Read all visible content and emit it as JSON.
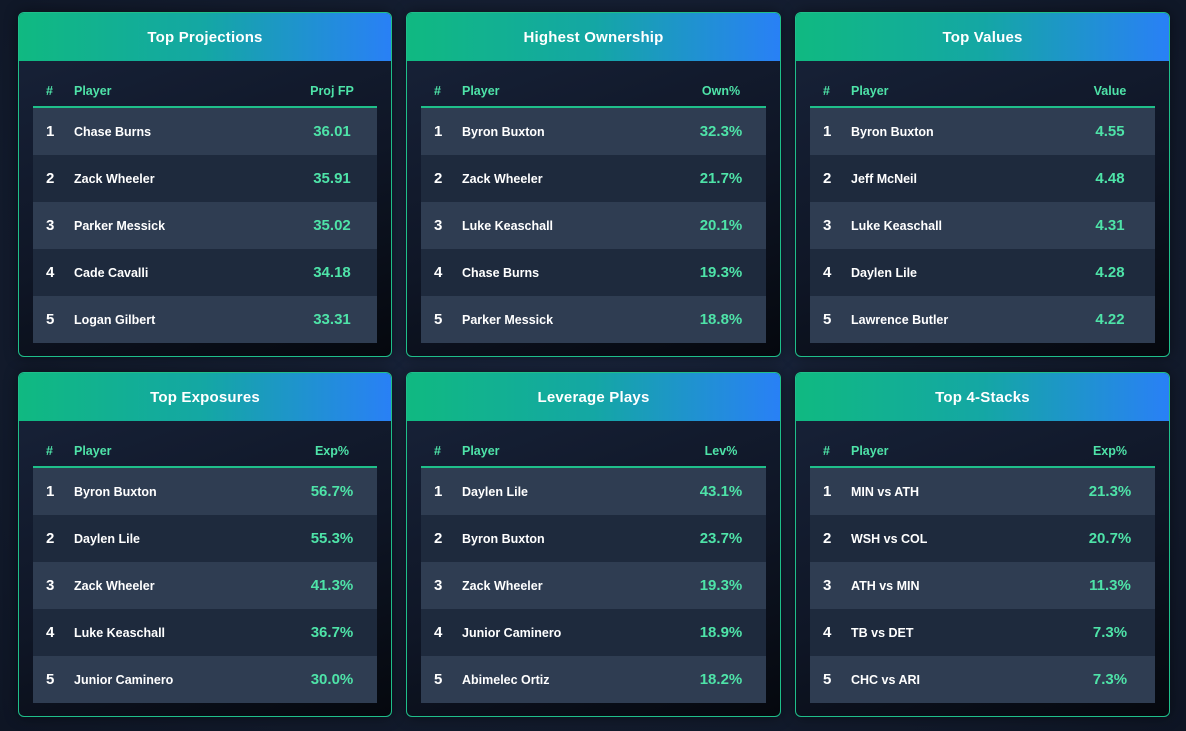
{
  "panels": [
    {
      "title": "Top Projections",
      "headers": {
        "rank": "#",
        "player": "Player",
        "value": "Proj FP"
      },
      "rows": [
        {
          "rank": "1",
          "player": "Chase Burns",
          "value": "36.01"
        },
        {
          "rank": "2",
          "player": "Zack Wheeler",
          "value": "35.91"
        },
        {
          "rank": "3",
          "player": "Parker Messick",
          "value": "35.02"
        },
        {
          "rank": "4",
          "player": "Cade Cavalli",
          "value": "34.18"
        },
        {
          "rank": "5",
          "player": "Logan Gilbert",
          "value": "33.31"
        }
      ]
    },
    {
      "title": "Highest Ownership",
      "headers": {
        "rank": "#",
        "player": "Player",
        "value": "Own%"
      },
      "rows": [
        {
          "rank": "1",
          "player": "Byron Buxton",
          "value": "32.3%"
        },
        {
          "rank": "2",
          "player": "Zack Wheeler",
          "value": "21.7%"
        },
        {
          "rank": "3",
          "player": "Luke Keaschall",
          "value": "20.1%"
        },
        {
          "rank": "4",
          "player": "Chase Burns",
          "value": "19.3%"
        },
        {
          "rank": "5",
          "player": "Parker Messick",
          "value": "18.8%"
        }
      ]
    },
    {
      "title": "Top Values",
      "headers": {
        "rank": "#",
        "player": "Player",
        "value": "Value"
      },
      "rows": [
        {
          "rank": "1",
          "player": "Byron Buxton",
          "value": "4.55"
        },
        {
          "rank": "2",
          "player": "Jeff McNeil",
          "value": "4.48"
        },
        {
          "rank": "3",
          "player": "Luke Keaschall",
          "value": "4.31"
        },
        {
          "rank": "4",
          "player": "Daylen Lile",
          "value": "4.28"
        },
        {
          "rank": "5",
          "player": "Lawrence Butler",
          "value": "4.22"
        }
      ]
    },
    {
      "title": "Top Exposures",
      "headers": {
        "rank": "#",
        "player": "Player",
        "value": "Exp%"
      },
      "rows": [
        {
          "rank": "1",
          "player": "Byron Buxton",
          "value": "56.7%"
        },
        {
          "rank": "2",
          "player": "Daylen Lile",
          "value": "55.3%"
        },
        {
          "rank": "3",
          "player": "Zack Wheeler",
          "value": "41.3%"
        },
        {
          "rank": "4",
          "player": "Luke Keaschall",
          "value": "36.7%"
        },
        {
          "rank": "5",
          "player": "Junior Caminero",
          "value": "30.0%"
        }
      ]
    },
    {
      "title": "Leverage Plays",
      "headers": {
        "rank": "#",
        "player": "Player",
        "value": "Lev%"
      },
      "rows": [
        {
          "rank": "1",
          "player": "Daylen Lile",
          "value": "43.1%"
        },
        {
          "rank": "2",
          "player": "Byron Buxton",
          "value": "23.7%"
        },
        {
          "rank": "3",
          "player": "Zack Wheeler",
          "value": "19.3%"
        },
        {
          "rank": "4",
          "player": "Junior Caminero",
          "value": "18.9%"
        },
        {
          "rank": "5",
          "player": "Abimelec Ortiz",
          "value": "18.2%"
        }
      ]
    },
    {
      "title": "Top 4-Stacks",
      "headers": {
        "rank": "#",
        "player": "Player",
        "value": "Exp%"
      },
      "rows": [
        {
          "rank": "1",
          "player": "MIN vs ATH",
          "value": "21.3%"
        },
        {
          "rank": "2",
          "player": "WSH vs COL",
          "value": "20.7%"
        },
        {
          "rank": "3",
          "player": "ATH vs MIN",
          "value": "11.3%"
        },
        {
          "rank": "4",
          "player": "TB vs DET",
          "value": "7.3%"
        },
        {
          "rank": "5",
          "player": "CHC vs ARI",
          "value": "7.3%"
        }
      ]
    }
  ],
  "colors": {
    "accent": "#4ee3a8",
    "border": "#1fbf8a",
    "header_start": "#10b981",
    "header_end": "#2980f6",
    "row_light": "#2f3d52",
    "row_dark": "#1e2a3d"
  }
}
